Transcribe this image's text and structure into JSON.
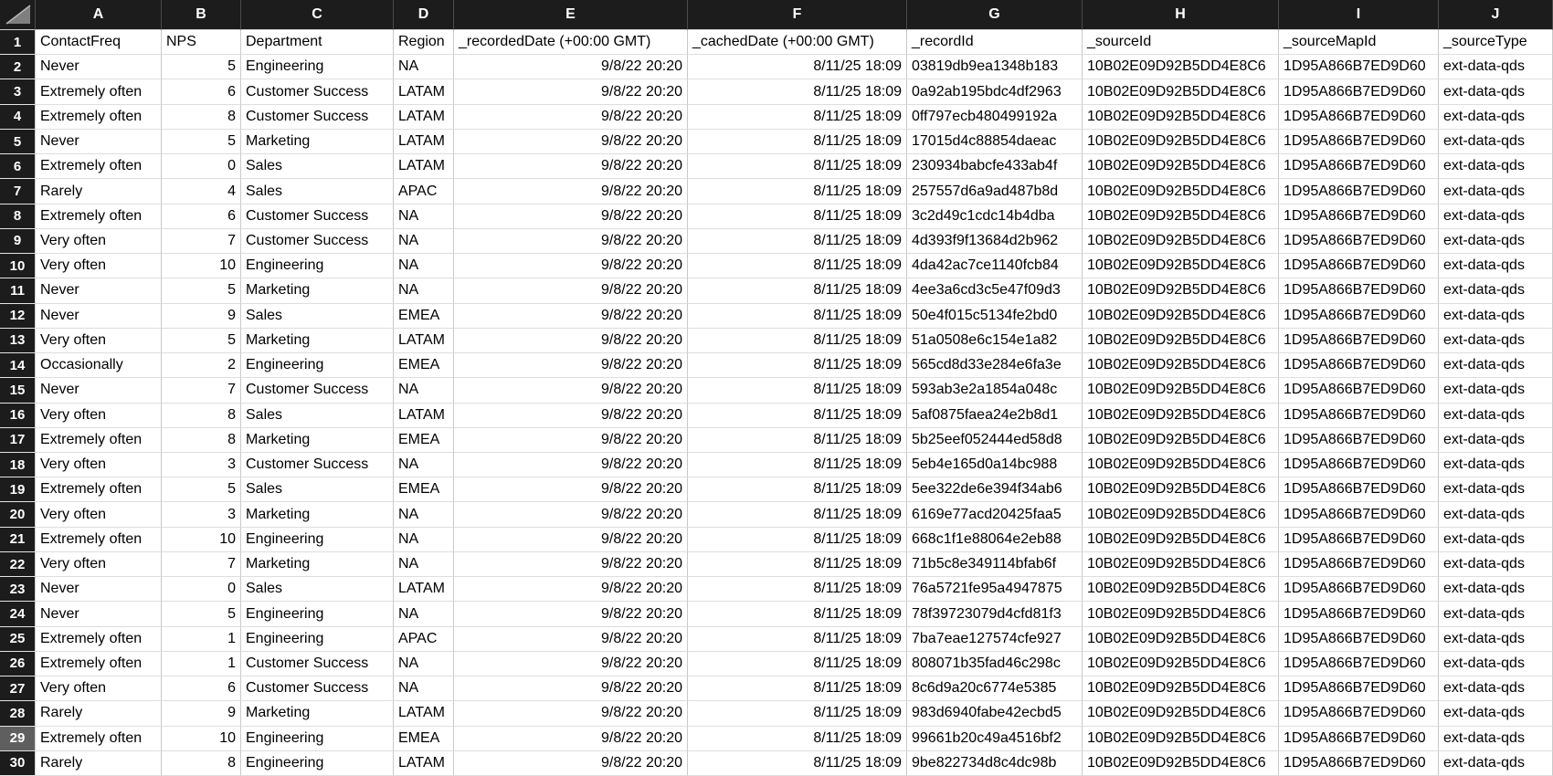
{
  "sheet": {
    "header_row_number": 1,
    "selected_gutter_row": 29,
    "colors": {
      "header_bg": "#1c1c1c",
      "header_text": "#ffffff",
      "selected_row_header_bg": "#5f5f5f",
      "grid_line": "#c9c9c9",
      "cell_text": "#000000"
    },
    "columns": [
      {
        "letter": "A",
        "field": "contact_freq",
        "label": "ContactFreq",
        "align": "left"
      },
      {
        "letter": "B",
        "field": "nps",
        "label": "NPS",
        "align": "right"
      },
      {
        "letter": "C",
        "field": "department",
        "label": "Department",
        "align": "left"
      },
      {
        "letter": "D",
        "field": "region",
        "label": "Region",
        "align": "left"
      },
      {
        "letter": "E",
        "field": "recorded_date",
        "label": "_recordedDate (+00:00 GMT)",
        "align": "right"
      },
      {
        "letter": "F",
        "field": "cached_date",
        "label": "_cachedDate (+00:00 GMT)",
        "align": "right"
      },
      {
        "letter": "G",
        "field": "record_id",
        "label": "_recordId",
        "align": "left"
      },
      {
        "letter": "H",
        "field": "source_id",
        "label": "_sourceId",
        "align": "left"
      },
      {
        "letter": "I",
        "field": "source_map_id",
        "label": "_sourceMapId",
        "align": "left"
      },
      {
        "letter": "J",
        "field": "source_type",
        "label": "_sourceType",
        "align": "left"
      }
    ],
    "rows": [
      {
        "n": 2,
        "contact_freq": "Never",
        "nps": 5,
        "department": "Engineering",
        "region": "NA",
        "recorded_date": "9/8/22 20:20",
        "cached_date": "8/11/25 18:09",
        "record_id": "03819db9ea1348b183",
        "source_id": "10B02E09D92B5DD4E8C6",
        "source_map_id": "1D95A866B7ED9D60",
        "source_type": "ext-data-qds"
      },
      {
        "n": 3,
        "contact_freq": "Extremely often",
        "nps": 6,
        "department": "Customer Success",
        "region": "LATAM",
        "recorded_date": "9/8/22 20:20",
        "cached_date": "8/11/25 18:09",
        "record_id": "0a92ab195bdc4df2963",
        "source_id": "10B02E09D92B5DD4E8C6",
        "source_map_id": "1D95A866B7ED9D60",
        "source_type": "ext-data-qds"
      },
      {
        "n": 4,
        "contact_freq": "Extremely often",
        "nps": 8,
        "department": "Customer Success",
        "region": "LATAM",
        "recorded_date": "9/8/22 20:20",
        "cached_date": "8/11/25 18:09",
        "record_id": "0ff797ecb480499192a",
        "source_id": "10B02E09D92B5DD4E8C6",
        "source_map_id": "1D95A866B7ED9D60",
        "source_type": "ext-data-qds"
      },
      {
        "n": 5,
        "contact_freq": "Never",
        "nps": 5,
        "department": "Marketing",
        "region": "LATAM",
        "recorded_date": "9/8/22 20:20",
        "cached_date": "8/11/25 18:09",
        "record_id": "17015d4c88854daeac",
        "source_id": "10B02E09D92B5DD4E8C6",
        "source_map_id": "1D95A866B7ED9D60",
        "source_type": "ext-data-qds"
      },
      {
        "n": 6,
        "contact_freq": "Extremely often",
        "nps": 0,
        "department": "Sales",
        "region": "LATAM",
        "recorded_date": "9/8/22 20:20",
        "cached_date": "8/11/25 18:09",
        "record_id": "230934babcfe433ab4f",
        "source_id": "10B02E09D92B5DD4E8C6",
        "source_map_id": "1D95A866B7ED9D60",
        "source_type": "ext-data-qds"
      },
      {
        "n": 7,
        "contact_freq": "Rarely",
        "nps": 4,
        "department": "Sales",
        "region": "APAC",
        "recorded_date": "9/8/22 20:20",
        "cached_date": "8/11/25 18:09",
        "record_id": "257557d6a9ad487b8d",
        "source_id": "10B02E09D92B5DD4E8C6",
        "source_map_id": "1D95A866B7ED9D60",
        "source_type": "ext-data-qds"
      },
      {
        "n": 8,
        "contact_freq": "Extremely often",
        "nps": 6,
        "department": "Customer Success",
        "region": "NA",
        "recorded_date": "9/8/22 20:20",
        "cached_date": "8/11/25 18:09",
        "record_id": "3c2d49c1cdc14b4dba",
        "source_id": "10B02E09D92B5DD4E8C6",
        "source_map_id": "1D95A866B7ED9D60",
        "source_type": "ext-data-qds"
      },
      {
        "n": 9,
        "contact_freq": "Very often",
        "nps": 7,
        "department": "Customer Success",
        "region": "NA",
        "recorded_date": "9/8/22 20:20",
        "cached_date": "8/11/25 18:09",
        "record_id": "4d393f9f13684d2b962",
        "source_id": "10B02E09D92B5DD4E8C6",
        "source_map_id": "1D95A866B7ED9D60",
        "source_type": "ext-data-qds"
      },
      {
        "n": 10,
        "contact_freq": "Very often",
        "nps": 10,
        "department": "Engineering",
        "region": "NA",
        "recorded_date": "9/8/22 20:20",
        "cached_date": "8/11/25 18:09",
        "record_id": "4da42ac7ce1140fcb84",
        "source_id": "10B02E09D92B5DD4E8C6",
        "source_map_id": "1D95A866B7ED9D60",
        "source_type": "ext-data-qds"
      },
      {
        "n": 11,
        "contact_freq": "Never",
        "nps": 5,
        "department": "Marketing",
        "region": "NA",
        "recorded_date": "9/8/22 20:20",
        "cached_date": "8/11/25 18:09",
        "record_id": "4ee3a6cd3c5e47f09d3",
        "source_id": "10B02E09D92B5DD4E8C6",
        "source_map_id": "1D95A866B7ED9D60",
        "source_type": "ext-data-qds"
      },
      {
        "n": 12,
        "contact_freq": "Never",
        "nps": 9,
        "department": "Sales",
        "region": "EMEA",
        "recorded_date": "9/8/22 20:20",
        "cached_date": "8/11/25 18:09",
        "record_id": "50e4f015c5134fe2bd0",
        "source_id": "10B02E09D92B5DD4E8C6",
        "source_map_id": "1D95A866B7ED9D60",
        "source_type": "ext-data-qds"
      },
      {
        "n": 13,
        "contact_freq": "Very often",
        "nps": 5,
        "department": "Marketing",
        "region": "LATAM",
        "recorded_date": "9/8/22 20:20",
        "cached_date": "8/11/25 18:09",
        "record_id": "51a0508e6c154e1a82",
        "source_id": "10B02E09D92B5DD4E8C6",
        "source_map_id": "1D95A866B7ED9D60",
        "source_type": "ext-data-qds"
      },
      {
        "n": 14,
        "contact_freq": "Occasionally",
        "nps": 2,
        "department": "Engineering",
        "region": "EMEA",
        "recorded_date": "9/8/22 20:20",
        "cached_date": "8/11/25 18:09",
        "record_id": "565cd8d33e284e6fa3e",
        "source_id": "10B02E09D92B5DD4E8C6",
        "source_map_id": "1D95A866B7ED9D60",
        "source_type": "ext-data-qds"
      },
      {
        "n": 15,
        "contact_freq": "Never",
        "nps": 7,
        "department": "Customer Success",
        "region": "NA",
        "recorded_date": "9/8/22 20:20",
        "cached_date": "8/11/25 18:09",
        "record_id": "593ab3e2a1854a048c",
        "source_id": "10B02E09D92B5DD4E8C6",
        "source_map_id": "1D95A866B7ED9D60",
        "source_type": "ext-data-qds"
      },
      {
        "n": 16,
        "contact_freq": "Very often",
        "nps": 8,
        "department": "Sales",
        "region": "LATAM",
        "recorded_date": "9/8/22 20:20",
        "cached_date": "8/11/25 18:09",
        "record_id": "5af0875faea24e2b8d1",
        "source_id": "10B02E09D92B5DD4E8C6",
        "source_map_id": "1D95A866B7ED9D60",
        "source_type": "ext-data-qds"
      },
      {
        "n": 17,
        "contact_freq": "Extremely often",
        "nps": 8,
        "department": "Marketing",
        "region": "EMEA",
        "recorded_date": "9/8/22 20:20",
        "cached_date": "8/11/25 18:09",
        "record_id": "5b25eef052444ed58d8",
        "source_id": "10B02E09D92B5DD4E8C6",
        "source_map_id": "1D95A866B7ED9D60",
        "source_type": "ext-data-qds"
      },
      {
        "n": 18,
        "contact_freq": "Very often",
        "nps": 3,
        "department": "Customer Success",
        "region": "NA",
        "recorded_date": "9/8/22 20:20",
        "cached_date": "8/11/25 18:09",
        "record_id": "5eb4e165d0a14bc988",
        "source_id": "10B02E09D92B5DD4E8C6",
        "source_map_id": "1D95A866B7ED9D60",
        "source_type": "ext-data-qds"
      },
      {
        "n": 19,
        "contact_freq": "Extremely often",
        "nps": 5,
        "department": "Sales",
        "region": "EMEA",
        "recorded_date": "9/8/22 20:20",
        "cached_date": "8/11/25 18:09",
        "record_id": "5ee322de6e394f34ab6",
        "source_id": "10B02E09D92B5DD4E8C6",
        "source_map_id": "1D95A866B7ED9D60",
        "source_type": "ext-data-qds"
      },
      {
        "n": 20,
        "contact_freq": "Very often",
        "nps": 3,
        "department": "Marketing",
        "region": "NA",
        "recorded_date": "9/8/22 20:20",
        "cached_date": "8/11/25 18:09",
        "record_id": "6169e77acd20425faa5",
        "source_id": "10B02E09D92B5DD4E8C6",
        "source_map_id": "1D95A866B7ED9D60",
        "source_type": "ext-data-qds"
      },
      {
        "n": 21,
        "contact_freq": "Extremely often",
        "nps": 10,
        "department": "Engineering",
        "region": "NA",
        "recorded_date": "9/8/22 20:20",
        "cached_date": "8/11/25 18:09",
        "record_id": "668c1f1e88064e2eb88",
        "source_id": "10B02E09D92B5DD4E8C6",
        "source_map_id": "1D95A866B7ED9D60",
        "source_type": "ext-data-qds"
      },
      {
        "n": 22,
        "contact_freq": "Very often",
        "nps": 7,
        "department": "Marketing",
        "region": "NA",
        "recorded_date": "9/8/22 20:20",
        "cached_date": "8/11/25 18:09",
        "record_id": "71b5c8e349114bfab6f",
        "source_id": "10B02E09D92B5DD4E8C6",
        "source_map_id": "1D95A866B7ED9D60",
        "source_type": "ext-data-qds"
      },
      {
        "n": 23,
        "contact_freq": "Never",
        "nps": 0,
        "department": "Sales",
        "region": "LATAM",
        "recorded_date": "9/8/22 20:20",
        "cached_date": "8/11/25 18:09",
        "record_id": "76a5721fe95a4947875",
        "source_id": "10B02E09D92B5DD4E8C6",
        "source_map_id": "1D95A866B7ED9D60",
        "source_type": "ext-data-qds"
      },
      {
        "n": 24,
        "contact_freq": "Never",
        "nps": 5,
        "department": "Engineering",
        "region": "NA",
        "recorded_date": "9/8/22 20:20",
        "cached_date": "8/11/25 18:09",
        "record_id": "78f39723079d4cfd81f3",
        "source_id": "10B02E09D92B5DD4E8C6",
        "source_map_id": "1D95A866B7ED9D60",
        "source_type": "ext-data-qds"
      },
      {
        "n": 25,
        "contact_freq": "Extremely often",
        "nps": 1,
        "department": "Engineering",
        "region": "APAC",
        "recorded_date": "9/8/22 20:20",
        "cached_date": "8/11/25 18:09",
        "record_id": "7ba7eae127574cfe927",
        "source_id": "10B02E09D92B5DD4E8C6",
        "source_map_id": "1D95A866B7ED9D60",
        "source_type": "ext-data-qds"
      },
      {
        "n": 26,
        "contact_freq": "Extremely often",
        "nps": 1,
        "department": "Customer Success",
        "region": "NA",
        "recorded_date": "9/8/22 20:20",
        "cached_date": "8/11/25 18:09",
        "record_id": "808071b35fad46c298c",
        "source_id": "10B02E09D92B5DD4E8C6",
        "source_map_id": "1D95A866B7ED9D60",
        "source_type": "ext-data-qds"
      },
      {
        "n": 27,
        "contact_freq": "Very often",
        "nps": 6,
        "department": "Customer Success",
        "region": "NA",
        "recorded_date": "9/8/22 20:20",
        "cached_date": "8/11/25 18:09",
        "record_id": "8c6d9a20c6774e5385",
        "source_id": "10B02E09D92B5DD4E8C6",
        "source_map_id": "1D95A866B7ED9D60",
        "source_type": "ext-data-qds"
      },
      {
        "n": 28,
        "contact_freq": "Rarely",
        "nps": 9,
        "department": "Marketing",
        "region": "LATAM",
        "recorded_date": "9/8/22 20:20",
        "cached_date": "8/11/25 18:09",
        "record_id": "983d6940fabe42ecbd5",
        "source_id": "10B02E09D92B5DD4E8C6",
        "source_map_id": "1D95A866B7ED9D60",
        "source_type": "ext-data-qds"
      },
      {
        "n": 29,
        "contact_freq": "Extremely often",
        "nps": 10,
        "department": "Engineering",
        "region": "EMEA",
        "recorded_date": "9/8/22 20:20",
        "cached_date": "8/11/25 18:09",
        "record_id": "99661b20c49a4516bf2",
        "source_id": "10B02E09D92B5DD4E8C6",
        "source_map_id": "1D95A866B7ED9D60",
        "source_type": "ext-data-qds"
      },
      {
        "n": 30,
        "contact_freq": "Rarely",
        "nps": 8,
        "department": "Engineering",
        "region": "LATAM",
        "recorded_date": "9/8/22 20:20",
        "cached_date": "8/11/25 18:09",
        "record_id": "9be822734d8c4dc98b",
        "source_id": "10B02E09D92B5DD4E8C6",
        "source_map_id": "1D95A866B7ED9D60",
        "source_type": "ext-data-qds"
      }
    ]
  }
}
